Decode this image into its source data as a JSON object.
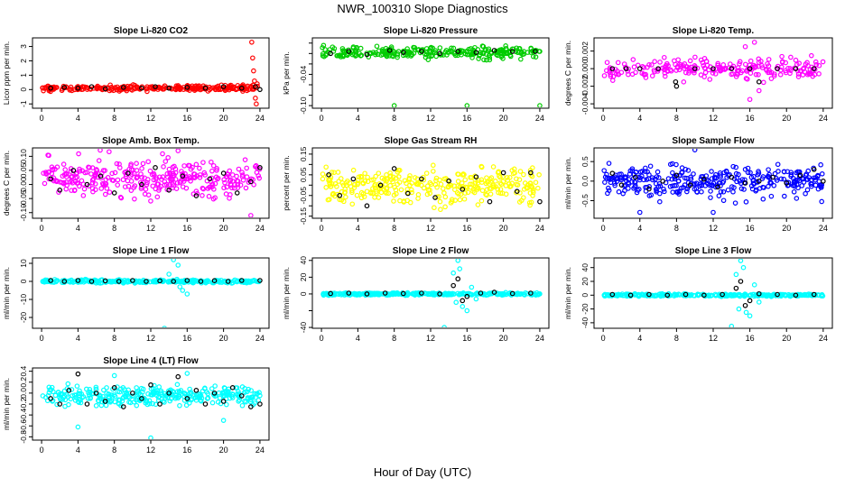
{
  "figure_title": "NWR_100310  Slope Diagnostics",
  "x_axis_label": "Hour of Day (UTC)",
  "x_ticks": [
    0,
    4,
    8,
    12,
    16,
    20,
    24
  ],
  "colors": {
    "red": "#ff0000",
    "green": "#00cc00",
    "magenta": "#ff00ff",
    "yellow": "#ffff00",
    "blue": "#0000ff",
    "cyan": "#00ffff",
    "black": "#000000"
  },
  "chart_data": [
    {
      "type": "scatter",
      "title": "Slope Li-820 CO2",
      "ylabel": "Licor ppm per min.",
      "ylim": [
        -1.3,
        3.6
      ],
      "yticks": [
        -1,
        0,
        1,
        2,
        3
      ],
      "ytick_labels": [
        "-1",
        "0",
        "1",
        "2",
        "3"
      ],
      "color": "red",
      "pattern": {
        "center": 0.1,
        "spread": 0.12,
        "n": 260
      },
      "black_points": [
        [
          1.0,
          0.1
        ],
        [
          2.5,
          0.15
        ],
        [
          4.0,
          0.1
        ],
        [
          5.5,
          0.2
        ],
        [
          7.0,
          0.05
        ],
        [
          9.0,
          0.15
        ],
        [
          11.0,
          0.1
        ],
        [
          12.5,
          0.2
        ],
        [
          14.0,
          0.1
        ],
        [
          16.0,
          0.15
        ],
        [
          18.0,
          0.1
        ],
        [
          20.0,
          0.2
        ],
        [
          22.0,
          0.1
        ],
        [
          23.5,
          0.2
        ],
        [
          24.0,
          0.0
        ]
      ],
      "outliers": [
        [
          23.1,
          3.3
        ],
        [
          23.2,
          2.2
        ],
        [
          23.3,
          1.3
        ],
        [
          23.4,
          0.6
        ],
        [
          23.5,
          -0.6
        ],
        [
          23.6,
          -1.0
        ],
        [
          23.7,
          0.4
        ]
      ]
    },
    {
      "type": "scatter",
      "title": "Slope Li-820 Pressure",
      "ylabel": "kPa per min.",
      "ylim": [
        -0.105,
        0.03
      ],
      "yticks": [
        -0.1,
        -0.08,
        -0.06,
        -0.04,
        -0.02,
        0,
        0.02
      ],
      "ytick_labels": [
        "-0.10",
        "",
        "",
        "-0.04",
        "",
        "",
        ""
      ],
      "color": "green",
      "pattern": {
        "center": 0.002,
        "spread": 0.008,
        "n": 260
      },
      "black_points": [
        [
          1.0,
          0.0
        ],
        [
          3.0,
          0.004
        ],
        [
          5.0,
          -0.002
        ],
        [
          7.5,
          0.006
        ],
        [
          9.0,
          0.002
        ],
        [
          11.0,
          0.004
        ],
        [
          13.0,
          0.0
        ],
        [
          15.0,
          0.004
        ],
        [
          17.0,
          0.002
        ],
        [
          19.0,
          0.006
        ],
        [
          21.0,
          0.004
        ],
        [
          23.5,
          0.004
        ]
      ],
      "outliers": [
        [
          8.0,
          -0.1
        ],
        [
          16.0,
          -0.1
        ],
        [
          24.0,
          -0.1
        ]
      ]
    },
    {
      "type": "scatter",
      "title": "Slope Li-820 Temp.",
      "ylabel": "degrees C per min.",
      "ylim": [
        -0.0045,
        0.0035
      ],
      "yticks": [
        -0.004,
        -0.002,
        0,
        0.002
      ],
      "ytick_labels": [
        "-0.004",
        "-0.002",
        "0.000",
        "0.002"
      ],
      "color": "magenta",
      "pattern": {
        "center": 0.0,
        "spread": 0.0008,
        "n": 230
      },
      "black_points": [
        [
          1.0,
          0.0
        ],
        [
          2.5,
          0.0
        ],
        [
          4.0,
          0.0
        ],
        [
          6.0,
          0.0
        ],
        [
          7.9,
          -0.0015
        ],
        [
          8.0,
          -0.002
        ],
        [
          10.0,
          0.0
        ],
        [
          12.0,
          0.0
        ],
        [
          14.0,
          0.0
        ],
        [
          16.0,
          0.0
        ],
        [
          17.0,
          -0.0015
        ],
        [
          19.0,
          0.0
        ],
        [
          21.0,
          0.0
        ],
        [
          23.0,
          0.0
        ]
      ],
      "outliers": [
        [
          16.5,
          0.003
        ],
        [
          16.0,
          -0.0035
        ],
        [
          15.5,
          0.0025
        ],
        [
          17.0,
          -0.0025
        ]
      ]
    },
    {
      "type": "scatter",
      "title": "Slope Amb. Box Temp.",
      "ylabel": "degrees C per min.",
      "ylim": [
        -0.12,
        0.13
      ],
      "yticks": [
        -0.1,
        -0.05,
        0,
        0.05,
        0.1
      ],
      "ytick_labels": [
        "-0.10",
        "-0.05",
        "0.00",
        "0.05",
        "0.10"
      ],
      "color": "magenta",
      "pattern": {
        "center": 0.02,
        "spread": 0.045,
        "n": 320
      },
      "black_points": [
        [
          1.0,
          0.02
        ],
        [
          2.0,
          -0.02
        ],
        [
          3.5,
          0.05
        ],
        [
          5.0,
          0.0
        ],
        [
          6.5,
          0.03
        ],
        [
          8.0,
          -0.03
        ],
        [
          9.5,
          0.04
        ],
        [
          11.0,
          0.0
        ],
        [
          12.5,
          0.06
        ],
        [
          14.0,
          -0.02
        ],
        [
          15.5,
          0.03
        ],
        [
          17.0,
          -0.04
        ],
        [
          18.5,
          0.02
        ],
        [
          20.0,
          0.04
        ],
        [
          21.5,
          -0.03
        ],
        [
          23.0,
          0.01
        ],
        [
          24.0,
          0.06
        ]
      ],
      "outliers": [
        [
          15.0,
          0.12
        ],
        [
          23.0,
          -0.11
        ]
      ]
    },
    {
      "type": "scatter",
      "title": "Slope Gas Stream RH",
      "ylabel": "percent per min.",
      "ylim": [
        -0.16,
        0.18
      ],
      "yticks": [
        -0.15,
        -0.1,
        -0.05,
        0,
        0.05,
        0.1,
        0.15
      ],
      "ytick_labels": [
        "-0.15",
        "",
        "-0.05",
        "",
        "0.05",
        "",
        "0.15"
      ],
      "color": "yellow",
      "pattern": {
        "center": 0.0,
        "spread": 0.06,
        "n": 320
      },
      "black_points": [
        [
          0.8,
          0.05
        ],
        [
          2.0,
          -0.05
        ],
        [
          3.5,
          0.03
        ],
        [
          5.0,
          -0.1
        ],
        [
          6.5,
          0.0
        ],
        [
          8.0,
          0.08
        ],
        [
          9.5,
          -0.04
        ],
        [
          11.0,
          0.03
        ],
        [
          12.5,
          -0.06
        ],
        [
          14.0,
          0.02
        ],
        [
          15.5,
          -0.02
        ],
        [
          17.0,
          0.04
        ],
        [
          18.5,
          -0.08
        ],
        [
          20.0,
          0.06
        ],
        [
          21.5,
          -0.03
        ],
        [
          23.0,
          0.06
        ],
        [
          24.0,
          -0.08
        ]
      ],
      "outliers": []
    },
    {
      "type": "scatter",
      "title": "Slope Sample Flow",
      "ylabel": "ml/min per min.",
      "ylim": [
        -0.95,
        0.85
      ],
      "yticks": [
        -0.5,
        0,
        0.5
      ],
      "ytick_labels": [
        "-0.5",
        "0.0",
        "0.5"
      ],
      "color": "blue",
      "pattern": {
        "center": 0.0,
        "spread": 0.28,
        "n": 320
      },
      "black_points": [
        [
          1.0,
          0.2
        ],
        [
          2.0,
          -0.1
        ],
        [
          3.5,
          0.1
        ],
        [
          5.0,
          -0.2
        ],
        [
          6.5,
          0.0
        ],
        [
          8.0,
          0.15
        ],
        [
          9.5,
          -0.1
        ],
        [
          11.0,
          0.05
        ],
        [
          12.5,
          -0.15
        ],
        [
          14.0,
          0.1
        ],
        [
          15.5,
          -0.05
        ],
        [
          17.0,
          0.0
        ],
        [
          18.5,
          0.1
        ],
        [
          20.0,
          -0.05
        ],
        [
          21.5,
          0.15
        ],
        [
          23.0,
          0.3
        ],
        [
          24.0,
          0.0
        ]
      ],
      "outliers": [
        [
          4.0,
          -0.8
        ],
        [
          10.0,
          0.8
        ],
        [
          12.0,
          -0.8
        ]
      ]
    },
    {
      "type": "scatter",
      "title": "Slope Line 1 Flow",
      "ylabel": "ml/min per min.",
      "ylim": [
        -26,
        13
      ],
      "yticks": [
        -20,
        -10,
        0,
        10
      ],
      "ytick_labels": [
        "-20",
        "-10",
        "0",
        "10"
      ],
      "color": "cyan",
      "pattern": {
        "center": 0.0,
        "spread": 0.6,
        "n": 300
      },
      "black_points": [
        [
          1.0,
          0.5
        ],
        [
          2.5,
          0.0
        ],
        [
          4.0,
          0.5
        ],
        [
          5.5,
          0.0
        ],
        [
          7.0,
          0.3
        ],
        [
          8.5,
          0.0
        ],
        [
          10.0,
          0.5
        ],
        [
          11.5,
          0.0
        ],
        [
          13.0,
          0.3
        ],
        [
          14.5,
          0.0
        ],
        [
          16.0,
          0.5
        ],
        [
          17.5,
          0.0
        ],
        [
          19.0,
          0.4
        ],
        [
          20.5,
          0.0
        ],
        [
          22.0,
          0.5
        ],
        [
          24.0,
          0.5
        ]
      ],
      "outliers": [
        [
          13.5,
          -26
        ],
        [
          14.5,
          12
        ],
        [
          15.0,
          9
        ],
        [
          15.5,
          -5
        ],
        [
          16.0,
          -7
        ],
        [
          14.0,
          4
        ],
        [
          15.2,
          -3
        ]
      ]
    },
    {
      "type": "scatter",
      "title": "Slope Line 2 Flow",
      "ylabel": "ml/min per min.",
      "ylim": [
        -41,
        43
      ],
      "yticks": [
        -40,
        -20,
        0,
        20,
        40
      ],
      "ytick_labels": [
        "-40",
        "",
        "0",
        "20",
        "40"
      ],
      "color": "cyan",
      "pattern": {
        "center": 0.0,
        "spread": 1.0,
        "n": 300
      },
      "black_points": [
        [
          1.0,
          0.5
        ],
        [
          3.0,
          1.0
        ],
        [
          5.0,
          0.0
        ],
        [
          7.0,
          1.0
        ],
        [
          9.0,
          0.5
        ],
        [
          11.0,
          1.0
        ],
        [
          13.0,
          0.0
        ],
        [
          14.5,
          10.0
        ],
        [
          15.0,
          18.0
        ],
        [
          15.5,
          -8.0
        ],
        [
          16.0,
          -3.0
        ],
        [
          17.5,
          1.0
        ],
        [
          19.0,
          2.0
        ],
        [
          21.0,
          0.5
        ],
        [
          23.0,
          1.0
        ]
      ],
      "outliers": [
        [
          13.5,
          -40
        ],
        [
          14.5,
          25
        ],
        [
          15.0,
          40
        ],
        [
          15.2,
          30
        ],
        [
          15.5,
          -15
        ],
        [
          16.0,
          -20
        ],
        [
          14.8,
          -10
        ],
        [
          16.5,
          8
        ],
        [
          17.0,
          -6
        ]
      ]
    },
    {
      "type": "scatter",
      "title": "Slope Line 3 Flow",
      "ylabel": "ml/min per min.",
      "ylim": [
        -48,
        54
      ],
      "yticks": [
        -40,
        -20,
        0,
        20,
        40
      ],
      "ytick_labels": [
        "-40",
        "-20",
        "0",
        "20",
        "40"
      ],
      "color": "cyan",
      "pattern": {
        "center": 0.0,
        "spread": 1.2,
        "n": 300
      },
      "black_points": [
        [
          1.0,
          1.0
        ],
        [
          3.0,
          0.0
        ],
        [
          5.0,
          1.0
        ],
        [
          7.0,
          0.0
        ],
        [
          9.0,
          1.0
        ],
        [
          11.0,
          0.0
        ],
        [
          13.0,
          1.0
        ],
        [
          14.5,
          10.0
        ],
        [
          15.0,
          20.0
        ],
        [
          15.5,
          -15.0
        ],
        [
          16.0,
          -8.0
        ],
        [
          17.0,
          2.0
        ],
        [
          19.0,
          1.0
        ],
        [
          21.0,
          0.0
        ],
        [
          23.0,
          1.0
        ]
      ],
      "outliers": [
        [
          14.0,
          -45
        ],
        [
          14.5,
          30
        ],
        [
          15.0,
          50
        ],
        [
          15.3,
          40
        ],
        [
          15.6,
          -25
        ],
        [
          16.0,
          -30
        ],
        [
          14.8,
          -20
        ],
        [
          16.5,
          15
        ],
        [
          17.0,
          -10
        ]
      ]
    },
    {
      "type": "scatter",
      "title": "Slope Line 4 (LT) Flow",
      "ylabel": "ml/min per min.",
      "ylim": [
        -0.86,
        0.46
      ],
      "yticks": [
        -0.8,
        -0.6,
        -0.4,
        -0.2,
        0,
        0.2,
        0.4
      ],
      "ytick_labels": [
        "-0.8",
        "-0.6",
        "-0.4",
        "-0.2",
        "0.0",
        "0.2",
        "0.4"
      ],
      "color": "cyan",
      "pattern": {
        "center": -0.05,
        "spread": 0.12,
        "n": 320
      },
      "black_points": [
        [
          1.0,
          -0.1
        ],
        [
          2.0,
          -0.2
        ],
        [
          3.0,
          0.05
        ],
        [
          4.0,
          0.35
        ],
        [
          5.0,
          -0.2
        ],
        [
          6.0,
          0.0
        ],
        [
          7.0,
          -0.15
        ],
        [
          8.0,
          0.1
        ],
        [
          9.0,
          -0.25
        ],
        [
          10.0,
          0.0
        ],
        [
          11.0,
          -0.1
        ],
        [
          12.0,
          0.15
        ],
        [
          13.0,
          -0.2
        ],
        [
          14.0,
          0.0
        ],
        [
          15.0,
          0.3
        ],
        [
          16.0,
          -0.1
        ],
        [
          17.0,
          0.05
        ],
        [
          18.0,
          -0.2
        ],
        [
          19.0,
          0.0
        ],
        [
          20.0,
          -0.15
        ],
        [
          21.0,
          0.1
        ],
        [
          22.0,
          -0.05
        ],
        [
          23.0,
          -0.25
        ],
        [
          24.0,
          -0.2
        ]
      ],
      "outliers": [
        [
          4.0,
          -0.62
        ],
        [
          12.0,
          -0.82
        ],
        [
          8.0,
          0.32
        ],
        [
          16.0,
          0.36
        ],
        [
          20.0,
          -0.5
        ]
      ]
    }
  ]
}
